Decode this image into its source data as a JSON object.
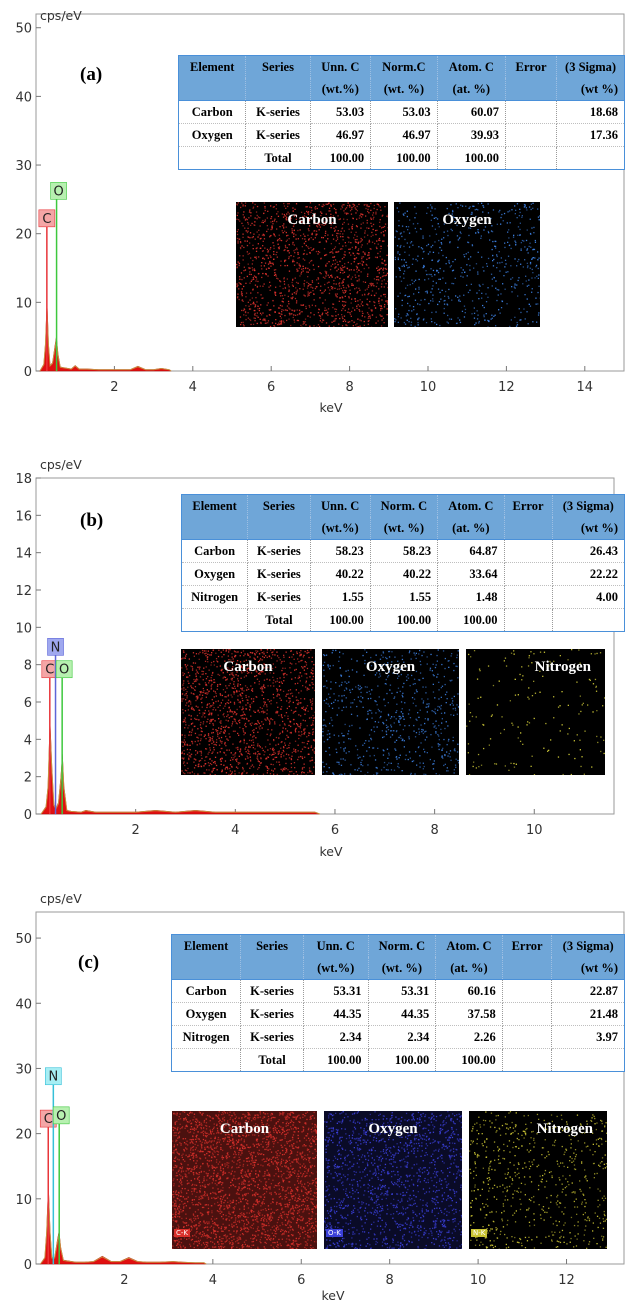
{
  "chart_data": [
    {
      "type": "area",
      "panel_label": "(a)",
      "ylabel": "cps/eV",
      "xlabel": "keV",
      "xlim": [
        0,
        15
      ],
      "ylim": [
        0,
        52
      ],
      "yticks": [
        0,
        10,
        20,
        30,
        40,
        50
      ],
      "xticks": [
        2,
        4,
        6,
        8,
        10,
        12,
        14
      ],
      "grid": false,
      "spectrum": {
        "x": [
          0.1,
          0.2,
          0.24,
          0.28,
          0.32,
          0.36,
          0.42,
          0.48,
          0.52,
          0.56,
          0.62,
          0.7,
          0.9,
          1.0,
          1.1,
          1.3,
          1.6,
          2.0,
          2.4,
          2.6,
          2.8,
          3.0,
          3.2,
          3.4,
          3.45
        ],
        "y": [
          0,
          1.0,
          4.0,
          10.0,
          4.0,
          0.8,
          1.2,
          3.5,
          5.0,
          2.5,
          0.6,
          0.5,
          0.3,
          0.8,
          0.3,
          0.3,
          0.2,
          0.2,
          0.2,
          0.7,
          0.2,
          0.2,
          0.4,
          0.2,
          0
        ]
      },
      "element_lines": [
        {
          "symbol": "C",
          "energy": 0.277,
          "height": 21
        },
        {
          "symbol": "O",
          "energy": 0.525,
          "height": 25
        }
      ],
      "table": {
        "header1": [
          "Element",
          "Series",
          "Unn. C",
          "Norm.C",
          "Atom. C",
          "Error",
          "(3 Sigma)"
        ],
        "header2": [
          "",
          "",
          "(wt.%)",
          "(wt. %)",
          "(at. %)",
          "",
          "(wt %)"
        ],
        "rows": [
          [
            "Carbon",
            "K-series",
            "53.03",
            "53.03",
            "60.07",
            "",
            "18.68"
          ],
          [
            "Oxygen",
            "K-series",
            "46.97",
            "46.97",
            "39.93",
            "",
            "17.36"
          ],
          [
            "",
            "Total",
            "100.00",
            "100.00",
            "100.00",
            "",
            ""
          ]
        ]
      },
      "maps": [
        {
          "label": "Carbon",
          "color": "#e0332e",
          "density": "high"
        },
        {
          "label": "Oxygen",
          "color": "#3c7fe0",
          "density": "medium"
        }
      ]
    },
    {
      "type": "area",
      "panel_label": "(b)",
      "ylabel": "cps/eV",
      "xlabel": "keV",
      "xlim": [
        0,
        11.6
      ],
      "ylim": [
        0,
        18
      ],
      "yticks": [
        0,
        2,
        4,
        6,
        8,
        10,
        12,
        14,
        16,
        18
      ],
      "xticks": [
        2,
        4,
        6,
        8,
        10
      ],
      "grid": false,
      "spectrum": {
        "x": [
          0.1,
          0.2,
          0.24,
          0.28,
          0.32,
          0.36,
          0.4,
          0.45,
          0.5,
          0.53,
          0.56,
          0.62,
          0.7,
          0.9,
          1.0,
          1.2,
          1.6,
          2.0,
          2.4,
          2.8,
          3.2,
          3.6,
          4.2,
          5.0,
          5.6,
          5.7
        ],
        "y": [
          0,
          0.4,
          1.5,
          5.0,
          2.5,
          0.5,
          0.3,
          0.6,
          2.0,
          3.2,
          1.5,
          0.2,
          0.15,
          0.1,
          0.2,
          0.1,
          0.1,
          0.1,
          0.2,
          0.1,
          0.2,
          0.1,
          0.1,
          0.1,
          0.1,
          0
        ]
      },
      "element_lines": [
        {
          "symbol": "C",
          "energy": 0.277,
          "height": 7.3
        },
        {
          "symbol": "N",
          "energy": 0.392,
          "height": 8.5
        },
        {
          "symbol": "O",
          "energy": 0.525,
          "height": 7.3
        }
      ],
      "table": {
        "header1": [
          "Element",
          "Series",
          "Unn. C",
          "Norm. C",
          "Atom. C",
          "Error",
          "(3 Sigma)"
        ],
        "header2": [
          "",
          "",
          "(wt.%)",
          "(wt. %)",
          "(at. %)",
          "",
          "(wt %)"
        ],
        "rows": [
          [
            "Carbon",
            "K-series",
            "58.23",
            "58.23",
            "64.87",
            "",
            "26.43"
          ],
          [
            "Oxygen",
            "K-series",
            "40.22",
            "40.22",
            "33.64",
            "",
            "22.22"
          ],
          [
            "Nitrogen",
            "K-series",
            "1.55",
            "1.55",
            "1.48",
            "",
            "4.00"
          ],
          [
            "",
            "Total",
            "100.00",
            "100.00",
            "100.00",
            "",
            ""
          ]
        ]
      },
      "maps": [
        {
          "label": "Carbon",
          "color": "#e0332e",
          "density": "high"
        },
        {
          "label": "Oxygen",
          "color": "#3c7fe0",
          "density": "medium"
        },
        {
          "label": "Nitrogen",
          "color": "#d8d23a",
          "density": "low"
        }
      ]
    },
    {
      "type": "area",
      "panel_label": "(c)",
      "ylabel": "cps/eV",
      "xlabel": "keV",
      "xlim": [
        0,
        13.3
      ],
      "ylim": [
        0,
        54
      ],
      "yticks": [
        0,
        10,
        20,
        30,
        40,
        50
      ],
      "xticks": [
        2,
        4,
        6,
        8,
        10,
        12
      ],
      "grid": false,
      "spectrum": {
        "x": [
          0.1,
          0.2,
          0.24,
          0.28,
          0.32,
          0.36,
          0.42,
          0.48,
          0.52,
          0.56,
          0.62,
          0.7,
          0.9,
          1.1,
          1.3,
          1.5,
          1.7,
          1.9,
          2.1,
          2.3,
          2.5,
          2.8,
          3.1,
          3.3,
          3.6,
          3.8,
          3.85
        ],
        "y": [
          0,
          1.0,
          5.0,
          12.0,
          5.0,
          1.0,
          1.0,
          3.5,
          5.0,
          2.5,
          0.6,
          0.5,
          0.3,
          0.3,
          0.4,
          1.2,
          0.4,
          0.4,
          1.0,
          0.4,
          0.3,
          0.3,
          0.4,
          0.3,
          0.2,
          0.2,
          0
        ]
      },
      "element_lines": [
        {
          "symbol": "C",
          "energy": 0.277,
          "height": 21
        },
        {
          "symbol": "N",
          "energy": 0.392,
          "height": 27.5
        },
        {
          "symbol": "O",
          "energy": 0.525,
          "height": 21.5
        }
      ],
      "table": {
        "header1": [
          "Element",
          "Series",
          "Unn. C",
          "Norm. C",
          "Atom. C",
          "Error",
          "(3 Sigma)"
        ],
        "header2": [
          "",
          "",
          "(wt.%)",
          "(wt. %)",
          "(at. %)",
          "",
          "(wt %)"
        ],
        "rows": [
          [
            "Carbon",
            "K-series",
            "53.31",
            "53.31",
            "60.16",
            "",
            "22.87"
          ],
          [
            "Oxygen",
            "K-series",
            "44.35",
            "44.35",
            "37.58",
            "",
            "21.48"
          ],
          [
            "Nitrogen",
            "K-series",
            "2.34",
            "2.34",
            "2.26",
            "",
            "3.97"
          ],
          [
            "",
            "Total",
            "100.00",
            "100.00",
            "100.00",
            "",
            ""
          ]
        ]
      },
      "maps": [
        {
          "label": "Carbon",
          "color": "#d8302b",
          "density": "veryhigh",
          "tag": "C-K"
        },
        {
          "label": "Oxygen",
          "color": "#3a3fd8",
          "density": "high",
          "tag": "O-K"
        },
        {
          "label": "Nitrogen",
          "color": "#c9c233",
          "density": "medium",
          "tag": "N-K"
        }
      ]
    }
  ],
  "colors": {
    "C": {
      "fill": "#f4a6a6",
      "line": "#e8353a"
    },
    "O": {
      "fill": "#b7f0b0",
      "line": "#3ec83e"
    },
    "N_b": {
      "fill": "#9fa8ef",
      "line": "#5e66d8"
    },
    "N_c": {
      "fill": "#a6eef4",
      "line": "#35c0d8"
    },
    "spectrum_fill": "#e01010",
    "spectrum_overlay": "#c9a64a",
    "table_header": "#6fa6d8"
  }
}
